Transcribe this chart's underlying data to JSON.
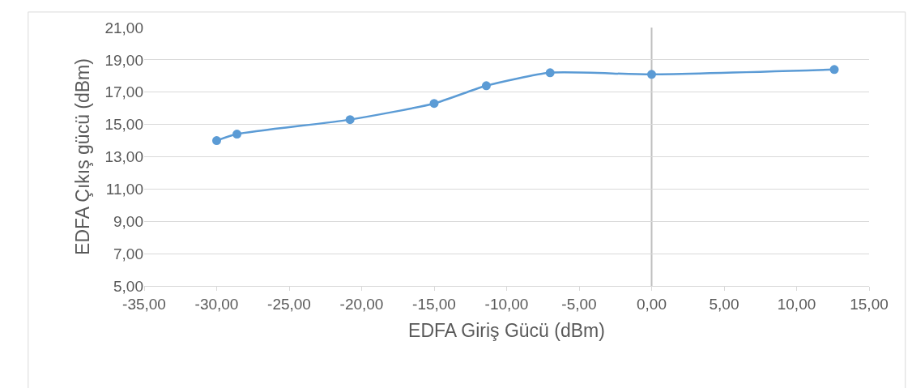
{
  "chart_data": {
    "type": "line",
    "xlabel": "EDFA Giriş Gücü (dBm)",
    "ylabel": "EDFA Çıkış gücü (dBm)",
    "x": [
      -30,
      -28.6,
      -20.8,
      -15,
      -11.4,
      -7,
      0,
      12.6
    ],
    "series": [
      {
        "color": "#5b9bd5",
        "values": [
          14.0,
          14.4,
          15.3,
          16.3,
          17.4,
          18.2,
          18.1,
          18.4
        ]
      }
    ],
    "xlim": [
      -35,
      15
    ],
    "xticks": [
      {
        "value": -35,
        "label": "-35,00"
      },
      {
        "value": -30,
        "label": "-30,00"
      },
      {
        "value": -25,
        "label": "-25,00"
      },
      {
        "value": -20,
        "label": "-20,00"
      },
      {
        "value": -15,
        "label": "-15,00"
      },
      {
        "value": -10,
        "label": "-10,00"
      },
      {
        "value": -5,
        "label": "-5,00"
      },
      {
        "value": 0,
        "label": "0,00"
      },
      {
        "value": 5,
        "label": "5,00"
      },
      {
        "value": 10,
        "label": "10,00"
      },
      {
        "value": 15,
        "label": "15,00"
      }
    ],
    "ylim": [
      5,
      21
    ],
    "yticks": [
      {
        "value": 5,
        "label": "5,00"
      },
      {
        "value": 7,
        "label": "7,00"
      },
      {
        "value": 9,
        "label": "9,00"
      },
      {
        "value": 11,
        "label": "11,00"
      },
      {
        "value": 13,
        "label": "13,00"
      },
      {
        "value": 15,
        "label": "15,00"
      },
      {
        "value": 17,
        "label": "17,00"
      },
      {
        "value": 19,
        "label": "19,00"
      },
      {
        "value": 21,
        "label": "21,00"
      }
    ],
    "grid": "y",
    "marker": "circle",
    "line_style": "solid",
    "ref_lines": [
      {
        "axis": "x",
        "value": 0,
        "color": "#bfbfbf"
      }
    ]
  }
}
